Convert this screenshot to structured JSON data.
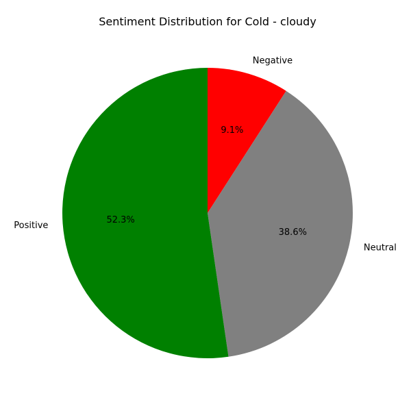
{
  "chart_data": {
    "type": "pie",
    "title": "Sentiment Distribution for Cold - cloudy",
    "categories": [
      "Negative",
      "Neutral",
      "Positive"
    ],
    "values": [
      9.1,
      38.6,
      52.3
    ],
    "value_labels": [
      "9.1%",
      "38.6%",
      "52.3%"
    ],
    "colors": [
      "#ff0000",
      "#808080",
      "#008000"
    ],
    "start_angle_deg": 90,
    "direction": "counterclockwise-from-top-ending-clockwise",
    "legend": "none"
  }
}
